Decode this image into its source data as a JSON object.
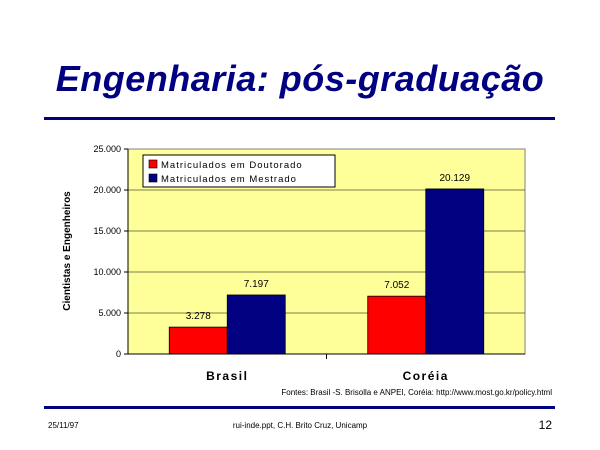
{
  "slide": {
    "title": "Engenharia: pós-graduação",
    "source": "Fontes: Brasil -S. Brisolla e ANPEI, Coréia: http://www.most.go.kr/policy.html",
    "footer_date": "25/11/97",
    "footer_center": "rui-inde.ppt, C.H. Brito Cruz, Unicamp",
    "page_number": "12"
  },
  "chart_data": {
    "type": "bar",
    "categories": [
      "Brasil",
      "Coréia"
    ],
    "series": [
      {
        "name": "Matriculados em Doutorado",
        "values": [
          3278,
          7052
        ],
        "labels": [
          "3.278",
          "7.052"
        ],
        "color": "#ff0000"
      },
      {
        "name": "Matriculados em Mestrado",
        "values": [
          7197,
          20129
        ],
        "labels": [
          "7.197",
          "20.129"
        ],
        "color": "#000080"
      }
    ],
    "ylabel": "Cientistas e Engenheiros",
    "xlabel": "",
    "ylim": [
      0,
      25000
    ],
    "yticks": [
      0,
      5000,
      10000,
      15000,
      20000,
      25000
    ],
    "ytick_labels": [
      "0",
      "5.000",
      "10.000",
      "15.000",
      "20.000",
      "25.000"
    ],
    "plot_background": "#ffff99",
    "grid": true,
    "legend_position": "top-left"
  }
}
